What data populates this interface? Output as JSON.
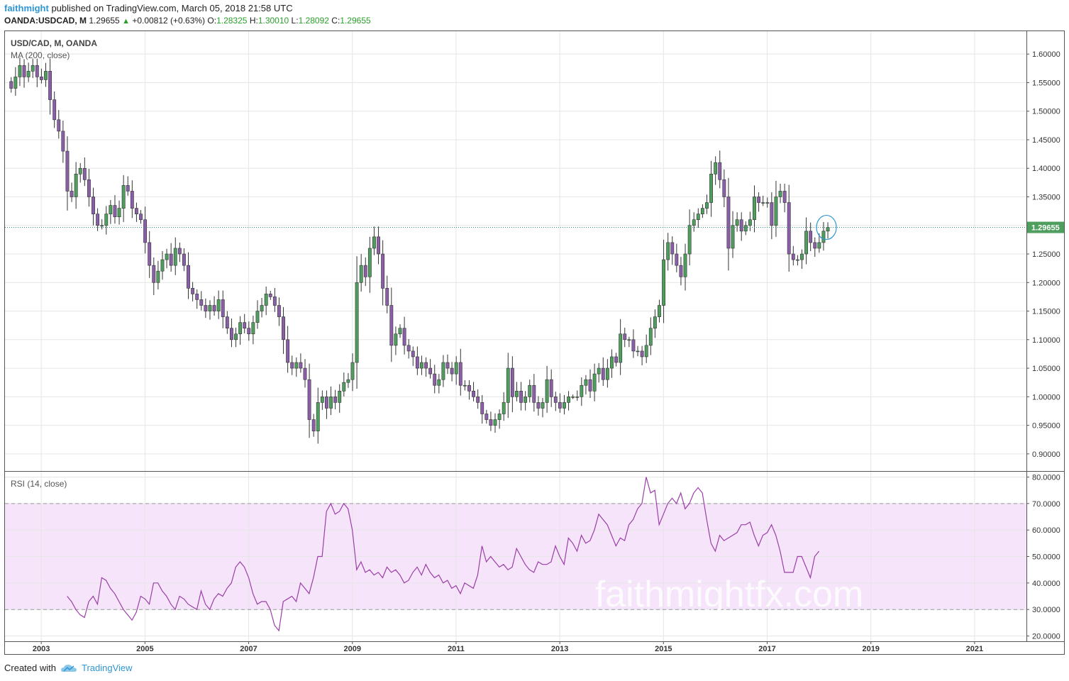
{
  "header": {
    "author": "faithmight",
    "published": "published on TradingView.com, March 05, 2018 21:58 UTC",
    "symbol": "OANDA:USDCAD, M",
    "last": "1.29655",
    "change": "+0.00812 (+0.63%)",
    "o_label": "O:",
    "o_value": "1.28325",
    "h_label": "H:",
    "h_value": "1.30010",
    "l_label": "L:",
    "l_value": "1.28092",
    "c_label": "C:",
    "c_value": "1.29655"
  },
  "footer": {
    "created_with": "Created with",
    "brand": "TradingView"
  },
  "watermark": "faithmightfx.com",
  "colors": {
    "up": "#4e9e5e",
    "down": "#8b5fa8",
    "rsi_line": "#9b3ea8",
    "rsi_band": "#f5e4fa",
    "price_line": "#2b8a6e",
    "circle": "#2e96d2"
  },
  "chart_data": [
    {
      "type": "candlestick",
      "title": "USD/CAD, M, OANDA",
      "indicator": "MA (200, close)",
      "current_price": 1.29655,
      "current_price_label": "1.29655",
      "ylim": [
        0.87,
        1.64
      ],
      "yticks": [
        0.9,
        0.95,
        1.0,
        1.05,
        1.1,
        1.15,
        1.2,
        1.25,
        1.3,
        1.35,
        1.4,
        1.45,
        1.5,
        1.55,
        1.6
      ],
      "ytick_labels": [
        "0.90000",
        "0.95000",
        "1.00000",
        "1.05000",
        "1.10000",
        "1.15000",
        "1.20000",
        "1.25000",
        "1.30000",
        "1.35000",
        "1.40000",
        "1.45000",
        "1.50000",
        "1.55000",
        "1.60000"
      ],
      "xlim": [
        2002.3,
        2022.0
      ],
      "xticks": [
        2003,
        2005,
        2007,
        2009,
        2011,
        2013,
        2015,
        2017,
        2019,
        2021
      ],
      "xtick_labels": [
        "2003",
        "2005",
        "2007",
        "2009",
        "2011",
        "2013",
        "2015",
        "2017",
        "2019",
        "2021"
      ],
      "start": 2002.42,
      "closes": [
        1.54,
        1.56,
        1.58,
        1.56,
        1.57,
        1.58,
        1.56,
        1.555,
        1.57,
        1.52,
        1.485,
        1.465,
        1.43,
        1.36,
        1.35,
        1.39,
        1.4,
        1.38,
        1.35,
        1.32,
        1.3,
        1.3,
        1.32,
        1.335,
        1.315,
        1.33,
        1.37,
        1.36,
        1.33,
        1.32,
        1.31,
        1.27,
        1.23,
        1.2,
        1.22,
        1.24,
        1.25,
        1.23,
        1.26,
        1.25,
        1.23,
        1.19,
        1.18,
        1.17,
        1.16,
        1.15,
        1.16,
        1.15,
        1.17,
        1.14,
        1.12,
        1.1,
        1.11,
        1.13,
        1.12,
        1.11,
        1.13,
        1.15,
        1.16,
        1.18,
        1.175,
        1.16,
        1.14,
        1.1,
        1.06,
        1.05,
        1.06,
        1.05,
        1.03,
        0.96,
        0.94,
        0.99,
        1.0,
        0.98,
        1.0,
        0.99,
        1.01,
        1.025,
        1.03,
        1.06,
        1.2,
        1.23,
        1.21,
        1.26,
        1.28,
        1.25,
        1.19,
        1.16,
        1.09,
        1.11,
        1.12,
        1.09,
        1.08,
        1.07,
        1.05,
        1.06,
        1.05,
        1.04,
        1.02,
        1.03,
        1.06,
        1.05,
        1.04,
        1.06,
        1.02,
        1.02,
        1.01,
        1.0,
        0.99,
        0.97,
        0.96,
        0.95,
        0.96,
        0.97,
        0.99,
        1.05,
        1.0,
        1.01,
        0.99,
        1.0,
        1.02,
        0.99,
        0.98,
        0.99,
        1.03,
        1.0,
        0.99,
        0.98,
        0.99,
        1.0,
        1.0,
        1.0,
        1.02,
        1.03,
        1.01,
        1.04,
        1.05,
        1.03,
        1.05,
        1.07,
        1.06,
        1.11,
        1.1,
        1.1,
        1.08,
        1.08,
        1.07,
        1.09,
        1.12,
        1.14,
        1.16,
        1.24,
        1.27,
        1.25,
        1.23,
        1.21,
        1.25,
        1.3,
        1.31,
        1.32,
        1.33,
        1.34,
        1.39,
        1.41,
        1.38,
        1.35,
        1.26,
        1.3,
        1.31,
        1.29,
        1.3,
        1.31,
        1.35,
        1.34,
        1.34,
        1.34,
        1.3,
        1.35,
        1.36,
        1.34,
        1.25,
        1.24,
        1.24,
        1.25,
        1.29,
        1.27,
        1.26,
        1.27,
        1.29,
        1.29655
      ],
      "ma_period": 200
    },
    {
      "type": "line",
      "title": "RSI (14, close)",
      "ylim": [
        18,
        82
      ],
      "yticks": [
        20,
        30,
        40,
        50,
        60,
        70,
        80
      ],
      "ytick_labels": [
        "20.0000",
        "30.0000",
        "40.0000",
        "50.0000",
        "60.0000",
        "70.0000",
        "80.0000"
      ],
      "bands": [
        30,
        70
      ],
      "start": 2003.5,
      "values": [
        35,
        33,
        30,
        28,
        27,
        33,
        35,
        32,
        42,
        41,
        38,
        36,
        33,
        30,
        28,
        26,
        29,
        35,
        34,
        32,
        40,
        40,
        37,
        35,
        32,
        30,
        35,
        34,
        32,
        31,
        30,
        37,
        32,
        30,
        34,
        36,
        35,
        38,
        40,
        46,
        48,
        46,
        42,
        36,
        32,
        33,
        33,
        30,
        24,
        22,
        33,
        34,
        35,
        33,
        40,
        38,
        36,
        42,
        50,
        50,
        67,
        70,
        66,
        67,
        70,
        68,
        60,
        45,
        48,
        44,
        45,
        43,
        44,
        42,
        46,
        44,
        45,
        43,
        40,
        41,
        44,
        46,
        43,
        47,
        44,
        42,
        43,
        40,
        41,
        38,
        39,
        36,
        40,
        39,
        38,
        43,
        54,
        48,
        50,
        48,
        46,
        47,
        45,
        46,
        53,
        50,
        47,
        45,
        44,
        48,
        47,
        47,
        48,
        54,
        50,
        47,
        57,
        55,
        52,
        58,
        55,
        56,
        60,
        66,
        64,
        62,
        58,
        54,
        57,
        56,
        62,
        64,
        68,
        70,
        80,
        74,
        75,
        62,
        66,
        70,
        72,
        70,
        74,
        68,
        70,
        74,
        76,
        74,
        64,
        55,
        52,
        58,
        56,
        57,
        58,
        59,
        62,
        62,
        63,
        58,
        54,
        58,
        59,
        62,
        58,
        52,
        44,
        44,
        44,
        50,
        50,
        46,
        42,
        50,
        52
      ]
    }
  ]
}
